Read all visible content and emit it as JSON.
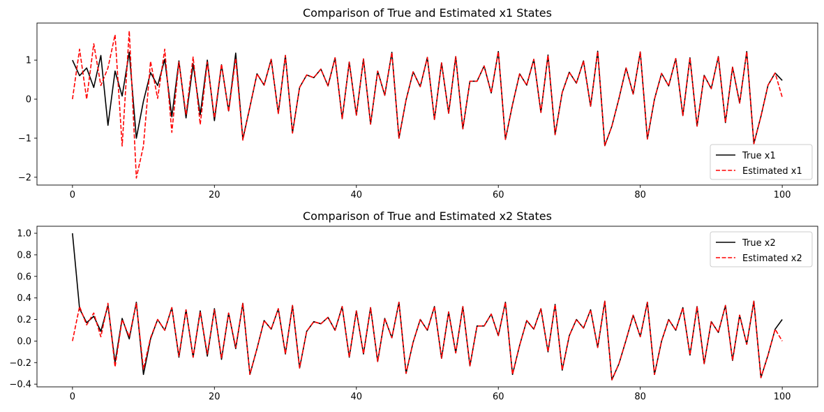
{
  "chart_data": [
    {
      "type": "line",
      "title": "Comparison of True and Estimated x1 States",
      "xlabel": "",
      "ylabel": "",
      "xlim": [
        -5,
        105
      ],
      "ylim": [
        -2.2,
        1.95
      ],
      "xticks": [
        0,
        20,
        40,
        60,
        80,
        100
      ],
      "yticks": [
        -2,
        -1,
        0,
        1
      ],
      "grid": false,
      "legend": "lower right",
      "x": [
        0,
        1,
        2,
        3,
        4,
        5,
        6,
        7,
        8,
        9,
        10,
        11,
        12,
        13,
        14,
        15,
        16,
        17,
        18,
        19,
        20,
        21,
        22,
        23,
        24,
        25,
        26,
        27,
        28,
        29,
        30,
        31,
        32,
        33,
        34,
        35,
        36,
        37,
        38,
        39,
        40,
        41,
        42,
        43,
        44,
        45,
        46,
        47,
        48,
        49,
        50,
        51,
        52,
        53,
        54,
        55,
        56,
        57,
        58,
        59,
        60,
        61,
        62,
        63,
        64,
        65,
        66,
        67,
        68,
        69,
        70,
        71,
        72,
        73,
        74,
        75,
        76,
        77,
        78,
        79,
        80,
        81,
        82,
        83,
        84,
        85,
        86,
        87,
        88,
        89,
        90,
        91,
        92,
        93,
        94,
        95,
        96,
        97,
        98,
        99,
        100
      ],
      "series": [
        {
          "name": "True x1",
          "color": "#000000",
          "dash": "solid",
          "values": [
            1.0,
            0.6,
            0.8,
            0.3,
            1.12,
            -0.67,
            0.72,
            0.08,
            1.2,
            -1.0,
            -0.05,
            0.68,
            0.35,
            1.02,
            -0.45,
            0.98,
            -0.48,
            0.9,
            -0.4,
            1.0,
            -0.55,
            0.88,
            -0.3,
            1.18,
            -1.02,
            -0.2,
            0.65,
            0.36,
            1.02,
            -0.36,
            1.12,
            -0.86,
            0.3,
            0.62,
            0.55,
            0.77,
            0.34,
            1.06,
            -0.5,
            0.95,
            -0.41,
            1.03,
            -0.64,
            0.72,
            0.1,
            1.2,
            -1.0,
            -0.02,
            0.7,
            0.32,
            1.07,
            -0.52,
            0.93,
            -0.36,
            1.09,
            -0.76,
            0.46,
            0.46,
            0.85,
            0.16,
            1.22,
            -1.03,
            -0.14,
            0.65,
            0.36,
            1.02,
            -0.34,
            1.13,
            -0.91,
            0.17,
            0.69,
            0.41,
            0.98,
            -0.18,
            1.23,
            -1.19,
            -0.69,
            0.02,
            0.8,
            0.13,
            1.21,
            -1.02,
            0.0,
            0.66,
            0.34,
            1.04,
            -0.42,
            1.06,
            -0.69,
            0.61,
            0.27,
            1.09,
            -0.6,
            0.82,
            -0.1,
            1.22,
            -1.14,
            -0.44,
            0.36,
            0.67,
            0.48
          ]
        },
        {
          "name": "Estimated x1",
          "color": "#ff0000",
          "dash": "dashed",
          "values": [
            0.0,
            1.28,
            0.0,
            1.42,
            0.35,
            0.8,
            1.65,
            -1.2,
            1.75,
            -2.02,
            -1.2,
            0.97,
            0.02,
            1.28,
            -0.85,
            0.95,
            -0.4,
            1.08,
            -0.65,
            0.95,
            -0.48,
            0.9,
            -0.32,
            1.05,
            -1.05,
            -0.2,
            0.65,
            0.36,
            1.02,
            -0.37,
            1.12,
            -0.87,
            0.3,
            0.62,
            0.55,
            0.77,
            0.34,
            1.06,
            -0.5,
            0.95,
            -0.41,
            1.03,
            -0.64,
            0.72,
            0.1,
            1.2,
            -1.0,
            -0.02,
            0.7,
            0.32,
            1.07,
            -0.52,
            0.93,
            -0.36,
            1.09,
            -0.76,
            0.46,
            0.46,
            0.85,
            0.16,
            1.22,
            -1.03,
            -0.14,
            0.65,
            0.36,
            1.02,
            -0.34,
            1.13,
            -0.91,
            0.17,
            0.69,
            0.41,
            0.98,
            -0.18,
            1.23,
            -1.19,
            -0.69,
            0.02,
            0.8,
            0.13,
            1.21,
            -1.02,
            0.0,
            0.66,
            0.34,
            1.04,
            -0.42,
            1.06,
            -0.69,
            0.61,
            0.27,
            1.09,
            -0.6,
            0.82,
            -0.1,
            1.22,
            -1.14,
            -0.44,
            0.36,
            0.67,
            0.05
          ]
        }
      ]
    },
    {
      "type": "line",
      "title": "Comparison of True and Estimated x2 States",
      "xlabel": "",
      "ylabel": "",
      "xlim": [
        -5,
        105
      ],
      "ylim": [
        -0.425,
        1.065
      ],
      "xticks": [
        0,
        20,
        40,
        60,
        80,
        100
      ],
      "yticks": [
        -0.4,
        -0.2,
        0.0,
        0.2,
        0.4,
        0.6,
        0.8,
        1.0
      ],
      "grid": false,
      "legend": "upper right",
      "x": [
        0,
        1,
        2,
        3,
        4,
        5,
        6,
        7,
        8,
        9,
        10,
        11,
        12,
        13,
        14,
        15,
        16,
        17,
        18,
        19,
        20,
        21,
        22,
        23,
        24,
        25,
        26,
        27,
        28,
        29,
        30,
        31,
        32,
        33,
        34,
        35,
        36,
        37,
        38,
        39,
        40,
        41,
        42,
        43,
        44,
        45,
        46,
        47,
        48,
        49,
        50,
        51,
        52,
        53,
        54,
        55,
        56,
        57,
        58,
        59,
        60,
        61,
        62,
        63,
        64,
        65,
        66,
        67,
        68,
        69,
        70,
        71,
        72,
        73,
        74,
        75,
        76,
        77,
        78,
        79,
        80,
        81,
        82,
        83,
        84,
        85,
        86,
        87,
        88,
        89,
        90,
        91,
        92,
        93,
        94,
        95,
        96,
        97,
        98,
        99,
        100
      ],
      "series": [
        {
          "name": "True x2",
          "color": "#000000",
          "dash": "solid",
          "values": [
            1.0,
            0.3,
            0.17,
            0.23,
            0.09,
            0.33,
            -0.2,
            0.21,
            0.02,
            0.36,
            -0.31,
            0.02,
            0.2,
            0.1,
            0.31,
            -0.15,
            0.29,
            -0.15,
            0.28,
            -0.14,
            0.3,
            -0.17,
            0.26,
            -0.07,
            0.35,
            -0.31,
            -0.07,
            0.19,
            0.11,
            0.3,
            -0.12,
            0.33,
            -0.25,
            0.09,
            0.18,
            0.16,
            0.22,
            0.1,
            0.32,
            -0.15,
            0.28,
            -0.12,
            0.31,
            -0.19,
            0.21,
            0.03,
            0.36,
            -0.3,
            -0.01,
            0.2,
            0.1,
            0.32,
            -0.16,
            0.27,
            -0.11,
            0.32,
            -0.23,
            0.14,
            0.14,
            0.25,
            0.05,
            0.36,
            -0.31,
            -0.04,
            0.19,
            0.11,
            0.3,
            -0.1,
            0.34,
            -0.27,
            0.05,
            0.2,
            0.12,
            0.29,
            -0.06,
            0.37,
            -0.36,
            -0.21,
            0.01,
            0.24,
            0.04,
            0.36,
            -0.31,
            0.0,
            0.2,
            0.1,
            0.31,
            -0.13,
            0.32,
            -0.21,
            0.18,
            0.08,
            0.33,
            -0.18,
            0.24,
            -0.03,
            0.37,
            -0.34,
            -0.13,
            0.11,
            0.2
          ]
        },
        {
          "name": "Estimated x2",
          "color": "#ff0000",
          "dash": "dashed",
          "values": [
            0.0,
            0.32,
            0.15,
            0.26,
            0.04,
            0.35,
            -0.24,
            0.2,
            0.04,
            0.35,
            -0.26,
            0.03,
            0.2,
            0.1,
            0.31,
            -0.14,
            0.29,
            -0.15,
            0.27,
            -0.12,
            0.29,
            -0.16,
            0.26,
            -0.06,
            0.35,
            -0.31,
            -0.07,
            0.19,
            0.11,
            0.3,
            -0.12,
            0.33,
            -0.25,
            0.09,
            0.18,
            0.16,
            0.22,
            0.1,
            0.32,
            -0.15,
            0.28,
            -0.12,
            0.31,
            -0.19,
            0.21,
            0.03,
            0.36,
            -0.3,
            -0.01,
            0.2,
            0.1,
            0.32,
            -0.16,
            0.27,
            -0.11,
            0.32,
            -0.23,
            0.14,
            0.14,
            0.25,
            0.05,
            0.36,
            -0.31,
            -0.04,
            0.19,
            0.11,
            0.3,
            -0.1,
            0.34,
            -0.27,
            0.05,
            0.2,
            0.12,
            0.29,
            -0.06,
            0.37,
            -0.36,
            -0.21,
            0.01,
            0.24,
            0.04,
            0.36,
            -0.31,
            0.0,
            0.2,
            0.1,
            0.31,
            -0.13,
            0.32,
            -0.21,
            0.18,
            0.08,
            0.33,
            -0.18,
            0.24,
            -0.03,
            0.37,
            -0.34,
            -0.13,
            0.11,
            0.0
          ]
        }
      ]
    }
  ]
}
